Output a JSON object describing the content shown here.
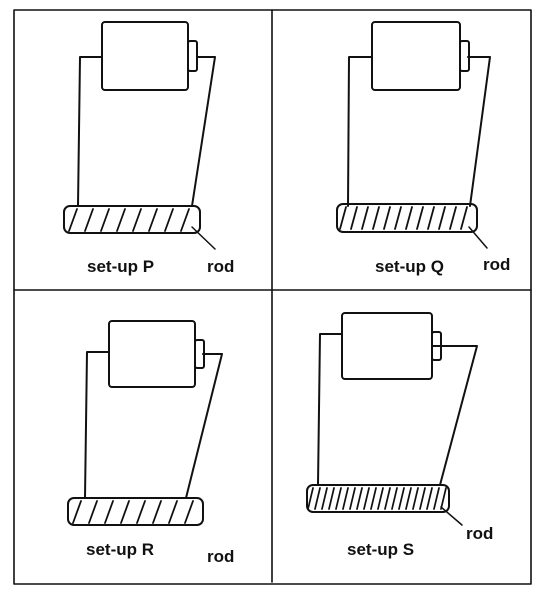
{
  "panels": [
    {
      "id": "P",
      "label": "set-up P",
      "rod_label": "rod",
      "winding": "sparse"
    },
    {
      "id": "Q",
      "label": "set-up Q",
      "rod_label": "rod",
      "winding": "medium"
    },
    {
      "id": "R",
      "label": "set-up R",
      "rod_label": "rod",
      "winding": "sparse"
    },
    {
      "id": "S",
      "label": "set-up S",
      "rod_label": "rod",
      "winding": "dense"
    }
  ],
  "colors": {
    "line": "#111111",
    "background": "#ffffff"
  }
}
